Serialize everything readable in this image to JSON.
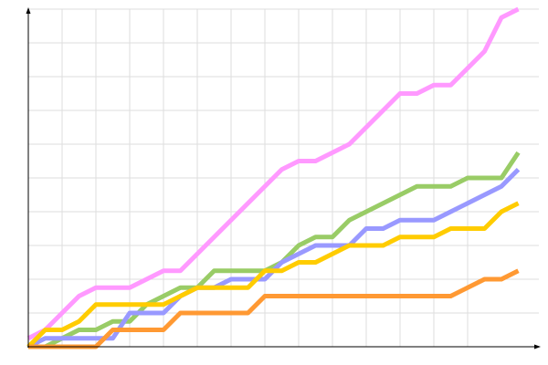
{
  "chart_data": {
    "type": "line",
    "title": "",
    "xlabel": "",
    "ylabel": "",
    "x": [
      0,
      1,
      2,
      3,
      4,
      5,
      6,
      7,
      8,
      9,
      10,
      11,
      12,
      13,
      14,
      15,
      16,
      17,
      18,
      19,
      20,
      21,
      22,
      23,
      24,
      25,
      26,
      27,
      28,
      29
    ],
    "xlim": [
      0,
      30
    ],
    "ylim": [
      0,
      20
    ],
    "grid": true,
    "legend": "none",
    "series": [
      {
        "color": "#ff99ff",
        "values": [
          0.5,
          1,
          2,
          3,
          3.5,
          3.5,
          3.5,
          4,
          4.5,
          4.5,
          5.5,
          6.5,
          7.5,
          8.5,
          9.5,
          10.5,
          11,
          11,
          11.5,
          12,
          13,
          14,
          15,
          15,
          15.5,
          15.5,
          16.5,
          17.5,
          19.5,
          20
        ]
      },
      {
        "color": "#99cc66",
        "values": [
          0,
          0,
          0.5,
          1,
          1,
          1.5,
          1.5,
          2.5,
          3,
          3.5,
          3.5,
          4.5,
          4.5,
          4.5,
          4.5,
          5,
          6,
          6.5,
          6.5,
          7.5,
          8,
          8.5,
          9,
          9.5,
          9.5,
          9.5,
          10,
          10,
          10,
          11.5
        ]
      },
      {
        "color": "#9999ff",
        "values": [
          0,
          0.5,
          0.5,
          0.5,
          0.5,
          0.5,
          2,
          2,
          2,
          3,
          3.5,
          3.5,
          4,
          4,
          4,
          5,
          5.5,
          6,
          6,
          6,
          7,
          7,
          7.5,
          7.5,
          7.5,
          8,
          8.5,
          9,
          9.5,
          10.5
        ]
      },
      {
        "color": "#ffcc00",
        "values": [
          0,
          1,
          1,
          1.5,
          2.5,
          2.5,
          2.5,
          2.5,
          2.5,
          3,
          3.5,
          3.5,
          3.5,
          3.5,
          4.5,
          4.5,
          5,
          5,
          5.5,
          6,
          6,
          6,
          6.5,
          6.5,
          6.5,
          7,
          7,
          7,
          8,
          8.5
        ]
      },
      {
        "color": "#ff9933",
        "values": [
          0,
          0,
          0,
          0,
          0,
          1,
          1,
          1,
          1,
          2,
          2,
          2,
          2,
          2,
          3,
          3,
          3,
          3,
          3,
          3,
          3,
          3,
          3,
          3,
          3,
          3,
          3.5,
          4,
          4,
          4.5
        ]
      }
    ]
  }
}
